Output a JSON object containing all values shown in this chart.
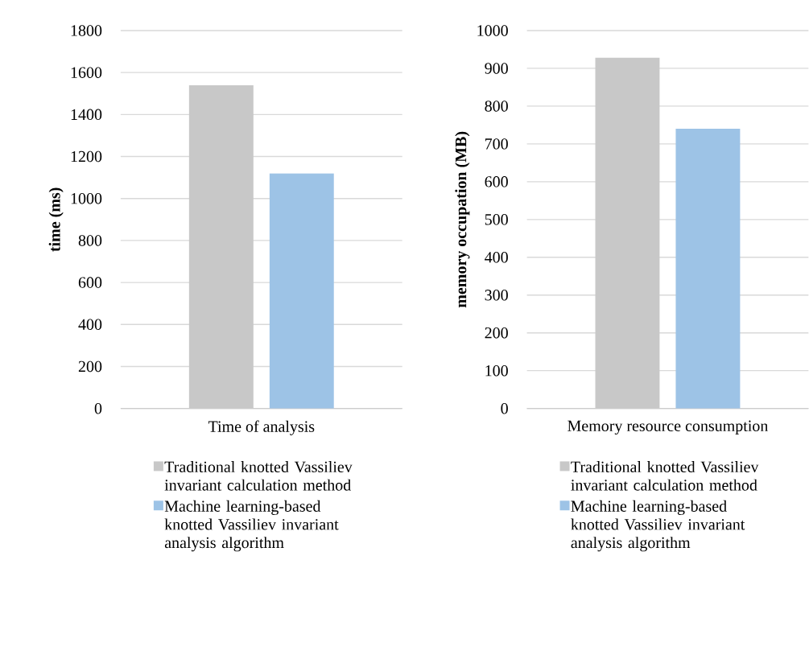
{
  "chart_data": [
    {
      "type": "bar",
      "categories": [
        "Time of analysis"
      ],
      "ylabel": "time (ms)",
      "ylim": [
        0,
        1800
      ],
      "yticks": [
        0,
        200,
        400,
        600,
        800,
        1000,
        1200,
        1400,
        1600,
        1800
      ],
      "grid": "y",
      "legend": "bottom",
      "series": [
        {
          "name": "Traditional knotted Vassiliev invariant calculation method",
          "color": "#c8c8c8",
          "values": [
            1540
          ]
        },
        {
          "name": "Machine learning-based knotted Vassiliev invariant analysis algorithm",
          "color": "#9dc3e6",
          "values": [
            1120
          ]
        }
      ]
    },
    {
      "type": "bar",
      "categories": [
        "Memory resource consumption"
      ],
      "ylabel": "memory occupation (MB)",
      "ylim": [
        0,
        1000
      ],
      "yticks": [
        0,
        100,
        200,
        300,
        400,
        500,
        600,
        700,
        800,
        900,
        1000
      ],
      "grid": "y",
      "legend": "bottom",
      "series": [
        {
          "name": "Traditional knotted Vassiliev invariant calculation method",
          "color": "#c8c8c8",
          "values": [
            928
          ]
        },
        {
          "name": "Machine learning-based knotted Vassiliev invariant analysis algorithm",
          "color": "#9dc3e6",
          "values": [
            740
          ]
        }
      ]
    }
  ]
}
